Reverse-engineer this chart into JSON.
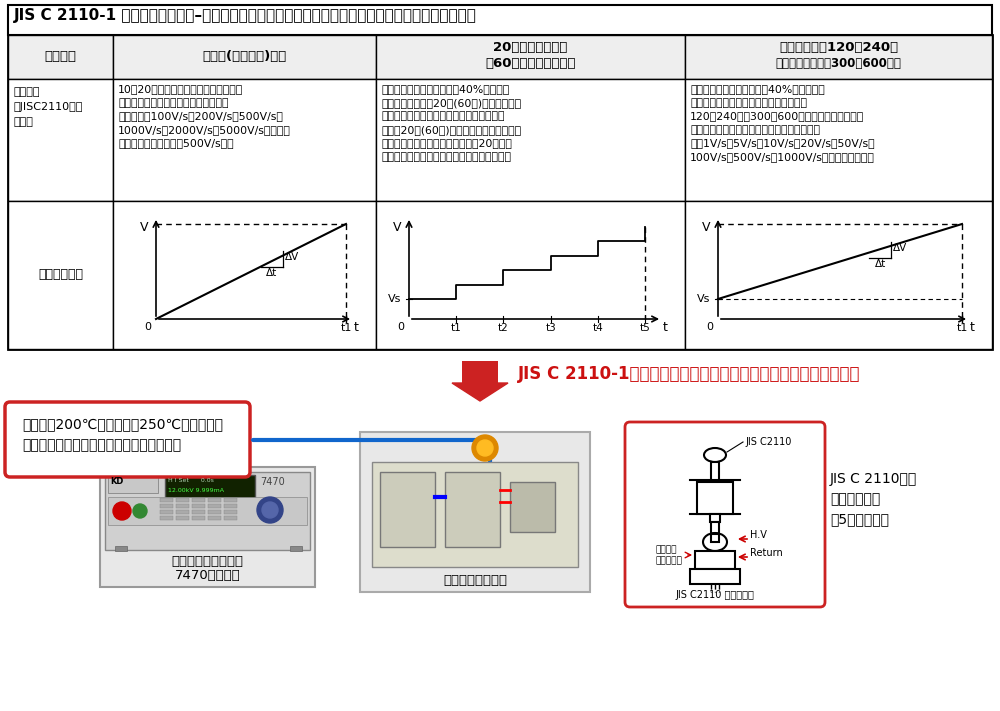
{
  "title": "JIS C 2110-1 固体電気絶縁材料–絶縁破壊の強さの試験方法（商用周波数交流電圧印加による試験）",
  "bg_color": "#ffffff",
  "col_header0": "試験方法",
  "col_header1": "短時間(急速昇圧)試験",
  "col_header2a": "20秒段階昇圧試験",
  "col_header2b": "（60秒段階昇圧試験）",
  "col_header3a": "低速昇圧試験120〜240秒",
  "col_header3b": "（超低速昇圧試験300〜600秒）",
  "row1_label": "試験内容\n（JISC2110より\n抜粋）",
  "row1_col1": "10〜20秒で絶縁破壊が起こるよう昇圧\n速度を選択し電圧印加する試験です。\n昇圧速度は100V/s、200V/s、500V/s、\n1000V/s、2000V/s、5000V/sから選択\nします。（一般的には500V/s）。",
  "row1_col2": "予想される絶縁破壊電圧の40%電圧を印\n加し、この電圧で20秒(60秒)加えても破壊\nしなければ、規定の段階電圧に従い順次高\nい電圧20秒(60秒)づつ加え破壊するまで続\nける試験です。絶縁破壊の強さは20秒に耐\nえた最も高い電圧に基づいて決定されます。",
  "row1_col3": "予想される絶縁破壊電圧の40%電圧から一\n定速度で昇圧する試験です。昇圧開始後\n120〜240秒（300〜600秒）の間に絶縁破壊が\n起こるように昇圧速度を選択します。昇圧速\n度は1V/s、5V/s、10V/s、20V/s、50V/s、\n100V/s、500V/s、1000V/sから選択します。",
  "row2_label": "試験イメージ",
  "arrow_text": "JIS C 2110-1試験器をパッケージ化。悩まずに試験器導入可能！",
  "box_text": "標準品で200℃、特注品で250℃まで対応！\n半導体のジャンクション温度も簡単再現！",
  "product1_label1": "超高電圧耐圧試験器",
  "product1_label2": "7470シリーズ",
  "product2_label": "油中電極治具装置",
  "product3_label1": "JIS C 2110規定",
  "product3_label2": "の電極治具を",
  "product3_label3": "計5種類準備。",
  "jis_c2110": "JIS C2110",
  "device_label": "デバイス\n（供試物）",
  "hv_label": "H.V",
  "return_label": "Return",
  "jis_bottom": "JIS C2110 規定の電極"
}
